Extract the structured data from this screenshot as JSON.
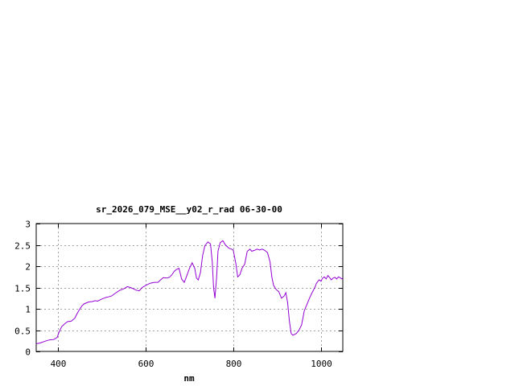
{
  "chart_data": {
    "type": "line",
    "title": "sr_2026_079_MSE__y02_r_rad 06-30-00",
    "xlabel": "nm",
    "ylabel": "",
    "xlim": [
      350,
      1050
    ],
    "ylim": [
      0,
      3
    ],
    "xticks": [
      400,
      600,
      800,
      1000
    ],
    "xtick_labels": [
      "400",
      "600",
      "800",
      "1000"
    ],
    "yticks": [
      0,
      0.5,
      1,
      1.5,
      2,
      2.5,
      3
    ],
    "ytick_labels": [
      "0",
      "0.5",
      "1",
      "1.5",
      "2",
      "2.5",
      "3"
    ],
    "grid": true,
    "legend": "none",
    "colors": {
      "line": "#9400d3",
      "axes": "#000000",
      "grid": "#a0a0a0"
    },
    "series": [
      {
        "x": [
          350,
          360,
          370,
          380,
          390,
          398,
          402,
          408,
          415,
          422,
          430,
          438,
          442,
          448,
          455,
          460,
          470,
          478,
          485,
          490,
          500,
          510,
          515,
          522,
          530,
          540,
          550,
          558,
          565,
          570,
          578,
          585,
          592,
          600,
          610,
          620,
          628,
          634,
          640,
          648,
          654,
          660,
          665,
          670,
          676,
          682,
          688,
          694,
          700,
          706,
          712,
          716,
          720,
          725,
          730,
          735,
          742,
          748,
          752,
          755,
          758,
          762,
          765,
          770,
          776,
          782,
          790,
          796,
          800,
          806,
          810,
          815,
          820,
          826,
          832,
          838,
          842,
          848,
          854,
          860,
          866,
          872,
          878,
          884,
          888,
          892,
          898,
          904,
          910,
          916,
          920,
          924,
          928,
          932,
          936,
          940,
          944,
          950,
          956,
          962,
          968,
          974,
          980,
          986,
          990,
          996,
          1000,
          1004,
          1008,
          1012,
          1016,
          1020,
          1024,
          1028,
          1032,
          1036,
          1040,
          1044,
          1048,
          1050
        ],
        "y": [
          0.18,
          0.2,
          0.24,
          0.27,
          0.28,
          0.33,
          0.45,
          0.58,
          0.65,
          0.7,
          0.71,
          0.78,
          0.86,
          0.97,
          1.08,
          1.12,
          1.16,
          1.17,
          1.19,
          1.18,
          1.23,
          1.27,
          1.28,
          1.3,
          1.36,
          1.43,
          1.47,
          1.52,
          1.5,
          1.48,
          1.44,
          1.42,
          1.5,
          1.55,
          1.6,
          1.62,
          1.62,
          1.68,
          1.73,
          1.72,
          1.74,
          1.8,
          1.88,
          1.92,
          1.95,
          1.7,
          1.62,
          1.78,
          1.95,
          2.08,
          1.95,
          1.72,
          1.68,
          1.85,
          2.25,
          2.48,
          2.57,
          2.52,
          2.1,
          1.5,
          1.25,
          1.75,
          2.35,
          2.55,
          2.6,
          2.5,
          2.42,
          2.4,
          2.38,
          2.05,
          1.75,
          1.8,
          1.95,
          2.05,
          2.35,
          2.4,
          2.35,
          2.37,
          2.4,
          2.38,
          2.4,
          2.37,
          2.32,
          2.1,
          1.75,
          1.55,
          1.45,
          1.4,
          1.25,
          1.3,
          1.38,
          1.15,
          0.72,
          0.42,
          0.38,
          0.4,
          0.42,
          0.5,
          0.62,
          0.95,
          1.1,
          1.25,
          1.38,
          1.5,
          1.6,
          1.68,
          1.65,
          1.72,
          1.75,
          1.7,
          1.78,
          1.73,
          1.68,
          1.72,
          1.74,
          1.7,
          1.75,
          1.73,
          1.7,
          1.72
        ]
      }
    ]
  }
}
